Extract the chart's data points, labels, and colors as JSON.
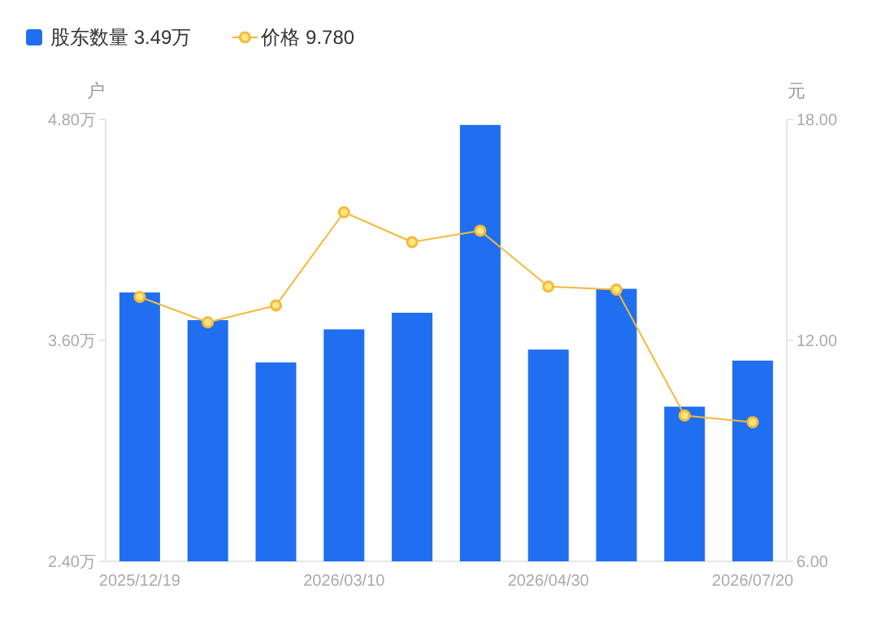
{
  "chart_data": {
    "type": "bar",
    "categories": [
      "2025/12/19",
      null,
      null,
      "2026/03/10",
      null,
      null,
      "2026/04/30",
      null,
      null,
      "2026/07/20"
    ],
    "series": [
      {
        "name": "股东数量 3.49万",
        "color": "#1f6ff0",
        "values": [
          3.86,
          3.71,
          3.48,
          3.66,
          3.75,
          4.77,
          3.55,
          3.88,
          3.24,
          3.49
        ]
      },
      {
        "name": "价格 9.780",
        "type": "line",
        "axis": "y2",
        "color": "#f5b93b",
        "marker": "circle",
        "values": [
          13.18,
          12.49,
          12.95,
          15.48,
          14.67,
          14.98,
          13.46,
          13.38,
          9.96,
          9.78
        ]
      }
    ],
    "ylabel": "户",
    "y2label": "元",
    "ylim": [
      2.4,
      4.8
    ],
    "yticks": [
      {
        "value": 2.4,
        "label": "2.40万"
      },
      {
        "value": 3.6,
        "label": "3.60万"
      },
      {
        "value": 4.8,
        "label": "4.80万"
      }
    ],
    "y2lim": [
      6,
      18
    ],
    "y2ticks": [
      {
        "value": 6,
        "label": "6.00"
      },
      {
        "value": 12,
        "label": "12.00"
      },
      {
        "value": 18,
        "label": "18.00"
      }
    ],
    "grid": false,
    "legend": "top left"
  }
}
